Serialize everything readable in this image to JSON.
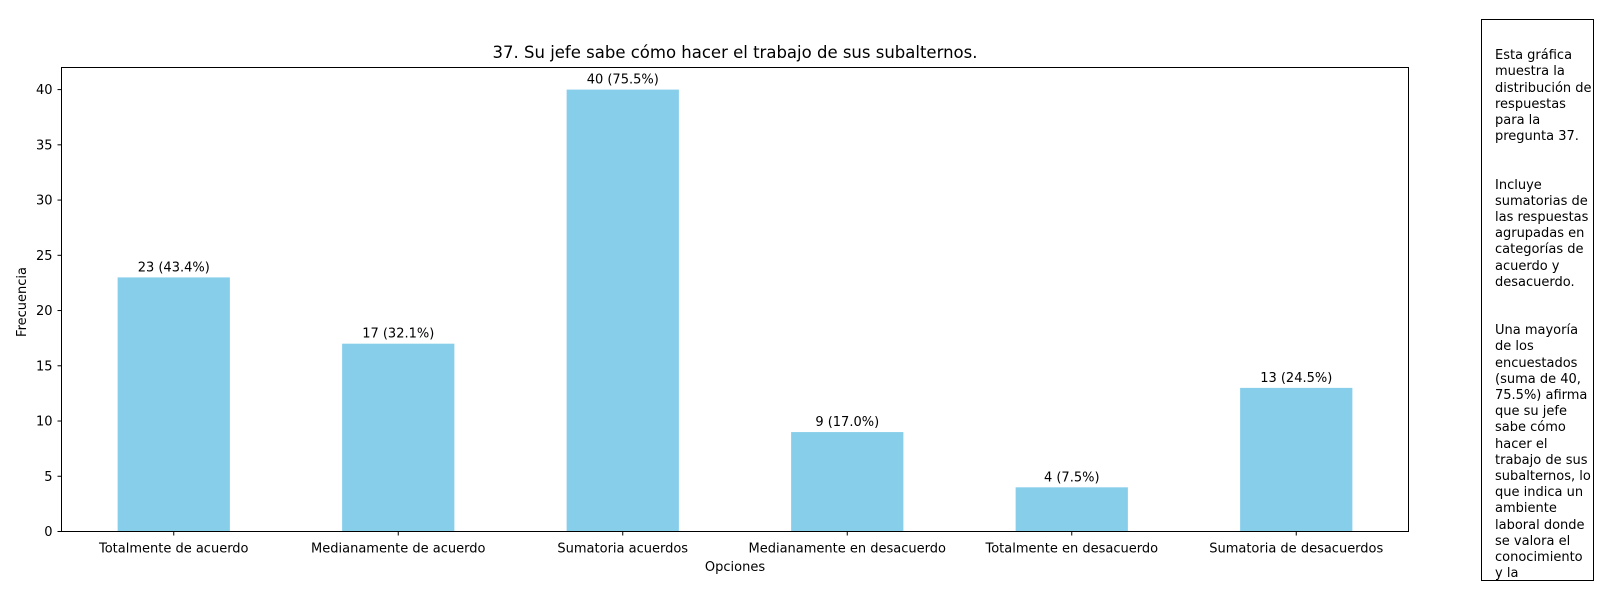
{
  "chart_data": {
    "type": "bar",
    "title": "37. Su jefe sabe cómo hacer el trabajo de sus subalternos.",
    "xlabel": "Opciones",
    "ylabel": "Frecuencia",
    "categories": [
      "Totalmente de acuerdo",
      "Medianamente de acuerdo",
      "Sumatoria acuerdos",
      "Medianamente en desacuerdo",
      "Totalmente en desacuerdo",
      "Sumatoria de desacuerdos"
    ],
    "values": [
      23,
      17,
      40,
      9,
      4,
      13
    ],
    "data_labels": [
      "23 (43.4%)",
      "17 (32.1%)",
      "40 (75.5%)",
      "9 (17.0%)",
      "4 (7.5%)",
      "13 (24.5%)"
    ],
    "ylim": [
      0,
      42
    ],
    "yticks": [
      0,
      5,
      10,
      15,
      20,
      25,
      30,
      35,
      40
    ],
    "bar_color": "#87CEEB",
    "grid": false,
    "legend": "none"
  },
  "side_note": {
    "paragraphs": [
      "Esta gráfica\nmuestra la\ndistribución de\nrespuestas\npara la\npregunta 37.",
      "Incluye\nsumatorias de\nlas respuestas\nagrupadas en\ncategorías de\nacuerdo y\ndesacuerdo.",
      "Una mayoría\nde los\nencuestados\n(suma de 40,\n75.5%) afirma\nque su jefe\nsabe cómo\nhacer el\ntrabajo de sus\nsubalternos, lo\nque indica un\nambiente\nlaboral donde\nse valora el\nconocimiento\ny la\ncompetencia\ndel liderazgo."
    ]
  }
}
